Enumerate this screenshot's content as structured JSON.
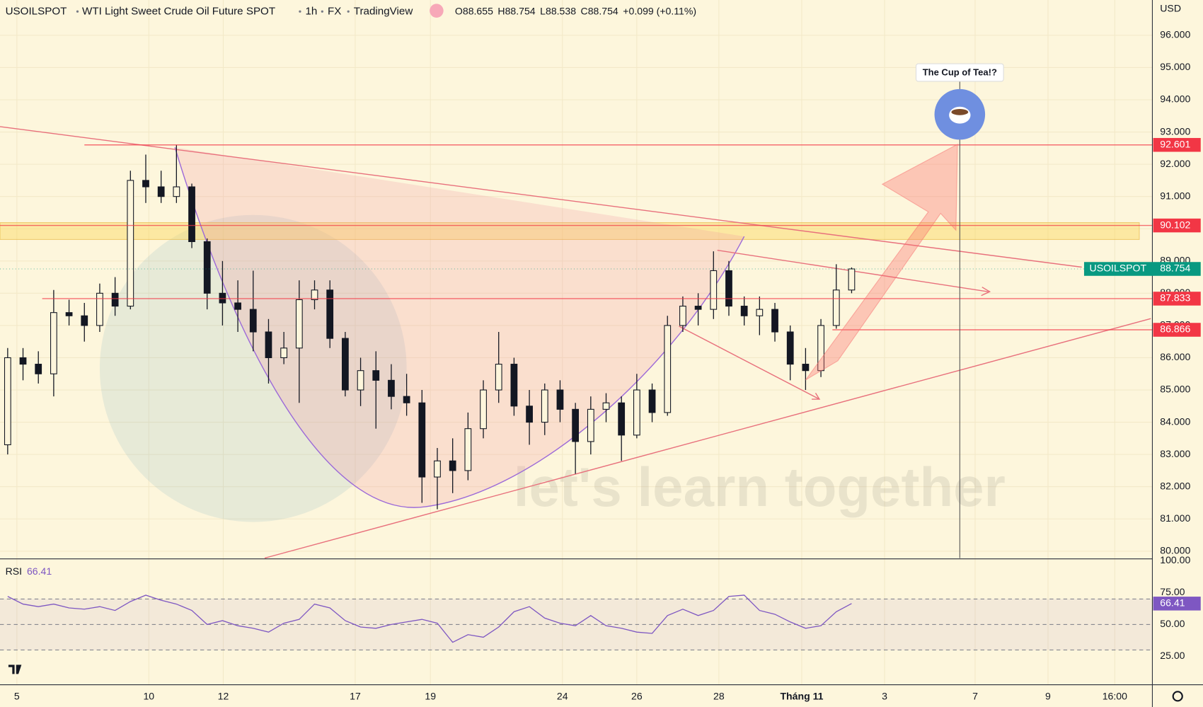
{
  "header": {
    "symbol": "USOILSPOT",
    "name": "WTI Light Sweet Crude Oil Future SPOT",
    "interval": "1h",
    "exchange": "FX",
    "source": "TradingView",
    "ohlc": [
      {
        "label": "O",
        "value": 88.655
      },
      {
        "label": "H",
        "value": 88.754
      },
      {
        "label": "L",
        "value": 88.538
      },
      {
        "label": "C",
        "value": 88.754
      }
    ],
    "change": "+0.099 (+0.11%)"
  },
  "currency": "USD",
  "annotation": "The Cup of Tea!?",
  "watermark": "let's learn together",
  "chart_data": [
    {
      "type": "candlestick",
      "color": "#131722",
      "open": [
        83.3,
        86.0,
        85.8,
        85.5,
        87.4,
        87.3,
        87.0,
        88.0,
        87.6,
        91.5,
        91.3,
        91.0,
        91.3,
        89.6,
        88.0,
        87.7,
        87.5,
        86.8,
        86.0,
        86.3,
        87.8,
        88.1,
        86.6,
        85.0,
        85.6,
        85.3,
        84.8,
        84.6,
        82.3,
        82.8,
        82.5,
        83.8,
        85.0,
        85.8,
        84.5,
        84.0,
        85.0,
        84.4,
        83.4,
        84.4,
        84.6,
        83.6,
        85.0,
        84.3,
        87.0,
        87.6,
        87.5,
        88.7,
        87.6,
        87.3,
        87.5,
        86.8,
        85.8,
        85.6,
        87.0,
        88.1
      ],
      "high": [
        86.3,
        86.3,
        86.2,
        88.1,
        87.8,
        87.7,
        88.3,
        88.5,
        91.8,
        92.3,
        91.8,
        92.6,
        91.4,
        89.7,
        89.0,
        88.4,
        88.7,
        87.2,
        86.8,
        88.4,
        88.4,
        88.4,
        86.8,
        86.0,
        86.2,
        85.8,
        85.5,
        85.0,
        83.2,
        83.5,
        84.3,
        85.3,
        86.8,
        86.0,
        85.0,
        85.2,
        85.3,
        84.6,
        84.8,
        84.9,
        84.8,
        85.5,
        85.2,
        87.3,
        87.9,
        88.0,
        89.3,
        89.0,
        87.9,
        87.9,
        87.7,
        87.0,
        86.3,
        87.2,
        88.9,
        88.8
      ],
      "low": [
        83.0,
        85.3,
        85.2,
        84.8,
        87.0,
        86.5,
        86.8,
        87.3,
        87.5,
        90.8,
        90.8,
        90.8,
        89.4,
        87.5,
        87.0,
        86.8,
        86.2,
        85.2,
        85.8,
        84.6,
        87.5,
        86.3,
        84.8,
        84.5,
        83.8,
        84.4,
        84.2,
        81.5,
        81.3,
        81.8,
        82.2,
        83.5,
        84.6,
        84.2,
        83.3,
        83.6,
        84.0,
        82.4,
        83.0,
        84.0,
        82.8,
        83.5,
        84.0,
        84.2,
        86.8,
        87.0,
        87.2,
        87.3,
        87.0,
        86.7,
        86.5,
        85.3,
        85.0,
        85.4,
        86.9,
        88.0
      ],
      "close": [
        86.0,
        85.8,
        85.5,
        87.4,
        87.3,
        87.0,
        88.0,
        87.6,
        91.5,
        91.3,
        91.0,
        91.3,
        89.6,
        88.0,
        87.7,
        87.5,
        86.8,
        86.0,
        86.3,
        87.8,
        88.1,
        86.6,
        85.0,
        85.6,
        85.3,
        84.8,
        84.6,
        82.3,
        82.8,
        82.5,
        83.8,
        85.0,
        85.8,
        84.5,
        84.0,
        85.0,
        84.4,
        83.4,
        84.4,
        84.6,
        83.6,
        85.0,
        84.3,
        87.0,
        87.6,
        87.5,
        88.7,
        87.6,
        87.3,
        87.5,
        86.8,
        85.8,
        85.6,
        87.0,
        88.1,
        88.754
      ],
      "ylim": [
        79.762,
        97.095
      ],
      "yticks": [
        {
          "value": 80,
          "label": "80.000"
        },
        {
          "value": 81,
          "label": "81.000"
        },
        {
          "value": 82,
          "label": "82.000"
        },
        {
          "value": 83,
          "label": "83.000"
        },
        {
          "value": 84,
          "label": "84.000"
        },
        {
          "value": 85,
          "label": "85.000"
        },
        {
          "value": 86,
          "label": "86.000"
        },
        {
          "value": 87,
          "label": "87.000"
        },
        {
          "value": 88,
          "label": "88.000"
        },
        {
          "value": 89,
          "label": "89.000"
        },
        {
          "value": 90,
          "label": "90.000"
        },
        {
          "value": 91,
          "label": "91.000"
        },
        {
          "value": 92,
          "label": "92.000"
        },
        {
          "value": 93,
          "label": "93.000"
        },
        {
          "value": 94,
          "label": "94.000"
        },
        {
          "value": 95,
          "label": "95.000"
        },
        {
          "value": 96,
          "label": "96.000"
        }
      ],
      "xlim": [
        0,
        75.1
      ],
      "xticks": [
        {
          "value": 1.1,
          "label": "5"
        },
        {
          "value": 9.7,
          "label": "10"
        },
        {
          "value": 14.55,
          "label": "12"
        },
        {
          "value": 23.15,
          "label": "17"
        },
        {
          "value": 28.05,
          "label": "19"
        },
        {
          "value": 36.65,
          "label": "24"
        },
        {
          "value": 41.5,
          "label": "26"
        },
        {
          "value": 46.85,
          "label": "28"
        },
        {
          "value": 52.25,
          "label": "Tháng 11"
        },
        {
          "value": 57.65,
          "label": "3"
        },
        {
          "value": 63.55,
          "label": "7"
        },
        {
          "value": 68.3,
          "label": "9"
        },
        {
          "value": 72.65,
          "label": "16:00"
        }
      ],
      "levels": [
        {
          "value": 92.601,
          "color": "#f23645"
        },
        {
          "value": 90.102,
          "color": "#f23645"
        },
        {
          "value": 87.833,
          "color": "#f23645"
        },
        {
          "value": 86.866,
          "color": "#f23645"
        }
      ],
      "last_label": "USOILSPOT",
      "last_color": "#089981",
      "grid": true
    },
    {
      "type": "line",
      "title": "RSI",
      "color": "#7e57c2",
      "values": [
        72,
        66,
        64,
        66,
        63,
        62,
        64,
        61,
        68,
        73,
        69,
        66,
        61,
        50,
        53,
        49,
        47,
        44,
        51,
        54,
        66,
        63,
        53,
        48,
        47,
        50,
        52,
        54,
        51,
        36,
        42,
        40,
        48,
        60,
        64,
        55,
        51,
        49,
        57,
        49,
        47,
        44,
        43,
        57,
        62,
        57,
        61,
        72,
        73,
        61,
        58,
        52,
        47,
        49,
        60,
        66.41
      ],
      "ylim": [
        2.7,
        101.5
      ],
      "yticks": [
        {
          "value": 25,
          "label": "25.00"
        },
        {
          "value": 50,
          "label": "50.00"
        },
        {
          "value": 75,
          "label": "75.00"
        },
        {
          "value": 100,
          "label": "100.00"
        }
      ],
      "band_lines": [
        70,
        50,
        30
      ]
    }
  ]
}
